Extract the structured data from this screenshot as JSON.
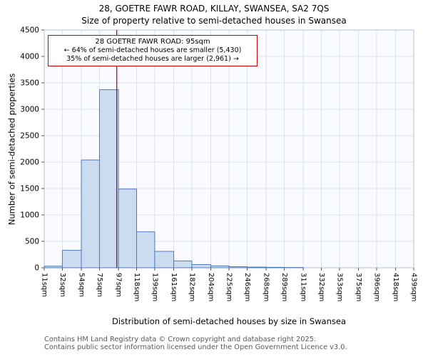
{
  "title": "28, GOETRE FAWR ROAD, KILLAY, SWANSEA, SA2 7QS",
  "subtitle": "Size of property relative to semi-detached houses in Swansea",
  "chart_data": {
    "type": "bar",
    "categories": [
      "11sqm",
      "32sqm",
      "54sqm",
      "75sqm",
      "97sqm",
      "118sqm",
      "139sqm",
      "161sqm",
      "182sqm",
      "204sqm",
      "225sqm",
      "246sqm",
      "268sqm",
      "289sqm",
      "311sqm",
      "332sqm",
      "353sqm",
      "375sqm",
      "396sqm",
      "418sqm",
      "439sqm"
    ],
    "bin_edges": [
      11,
      32,
      54,
      75,
      97,
      118,
      139,
      161,
      182,
      204,
      225,
      246,
      268,
      289,
      311,
      332,
      353,
      375,
      396,
      418,
      439
    ],
    "values": [
      30,
      330,
      2040,
      3370,
      1490,
      680,
      310,
      130,
      60,
      35,
      20,
      12,
      8,
      5,
      0,
      0,
      0,
      0,
      0,
      0
    ],
    "title": "28, GOETRE FAWR ROAD, KILLAY, SWANSEA, SA2 7QS",
    "xlabel": "Distribution of semi-detached houses by size in Swansea",
    "ylabel": "Number of semi-detached properties",
    "ylim": [
      0,
      4500
    ],
    "ytick_step": 500,
    "grid": true,
    "marker": {
      "value": 95,
      "label": "95sqm",
      "color": "#aa0000"
    },
    "annotation": {
      "lines": [
        "28 GOETRE FAWR ROAD: 95sqm",
        "← 64% of semi-detached houses are smaller (5,430)",
        "35% of semi-detached houses are larger (2,961) →"
      ],
      "border_color": "#cc0000"
    },
    "colors": {
      "bar_fill": "#ccdcf0",
      "bar_stroke": "#4f7ab8",
      "grid": "#d9e1f2",
      "spine": "#b9c2d4",
      "plot_bg": "#fafbfe"
    }
  },
  "footer": {
    "line1": "Contains HM Land Registry data © Crown copyright and database right 2025.",
    "line2": "Contains public sector information licensed under the Open Government Licence v3.0."
  }
}
